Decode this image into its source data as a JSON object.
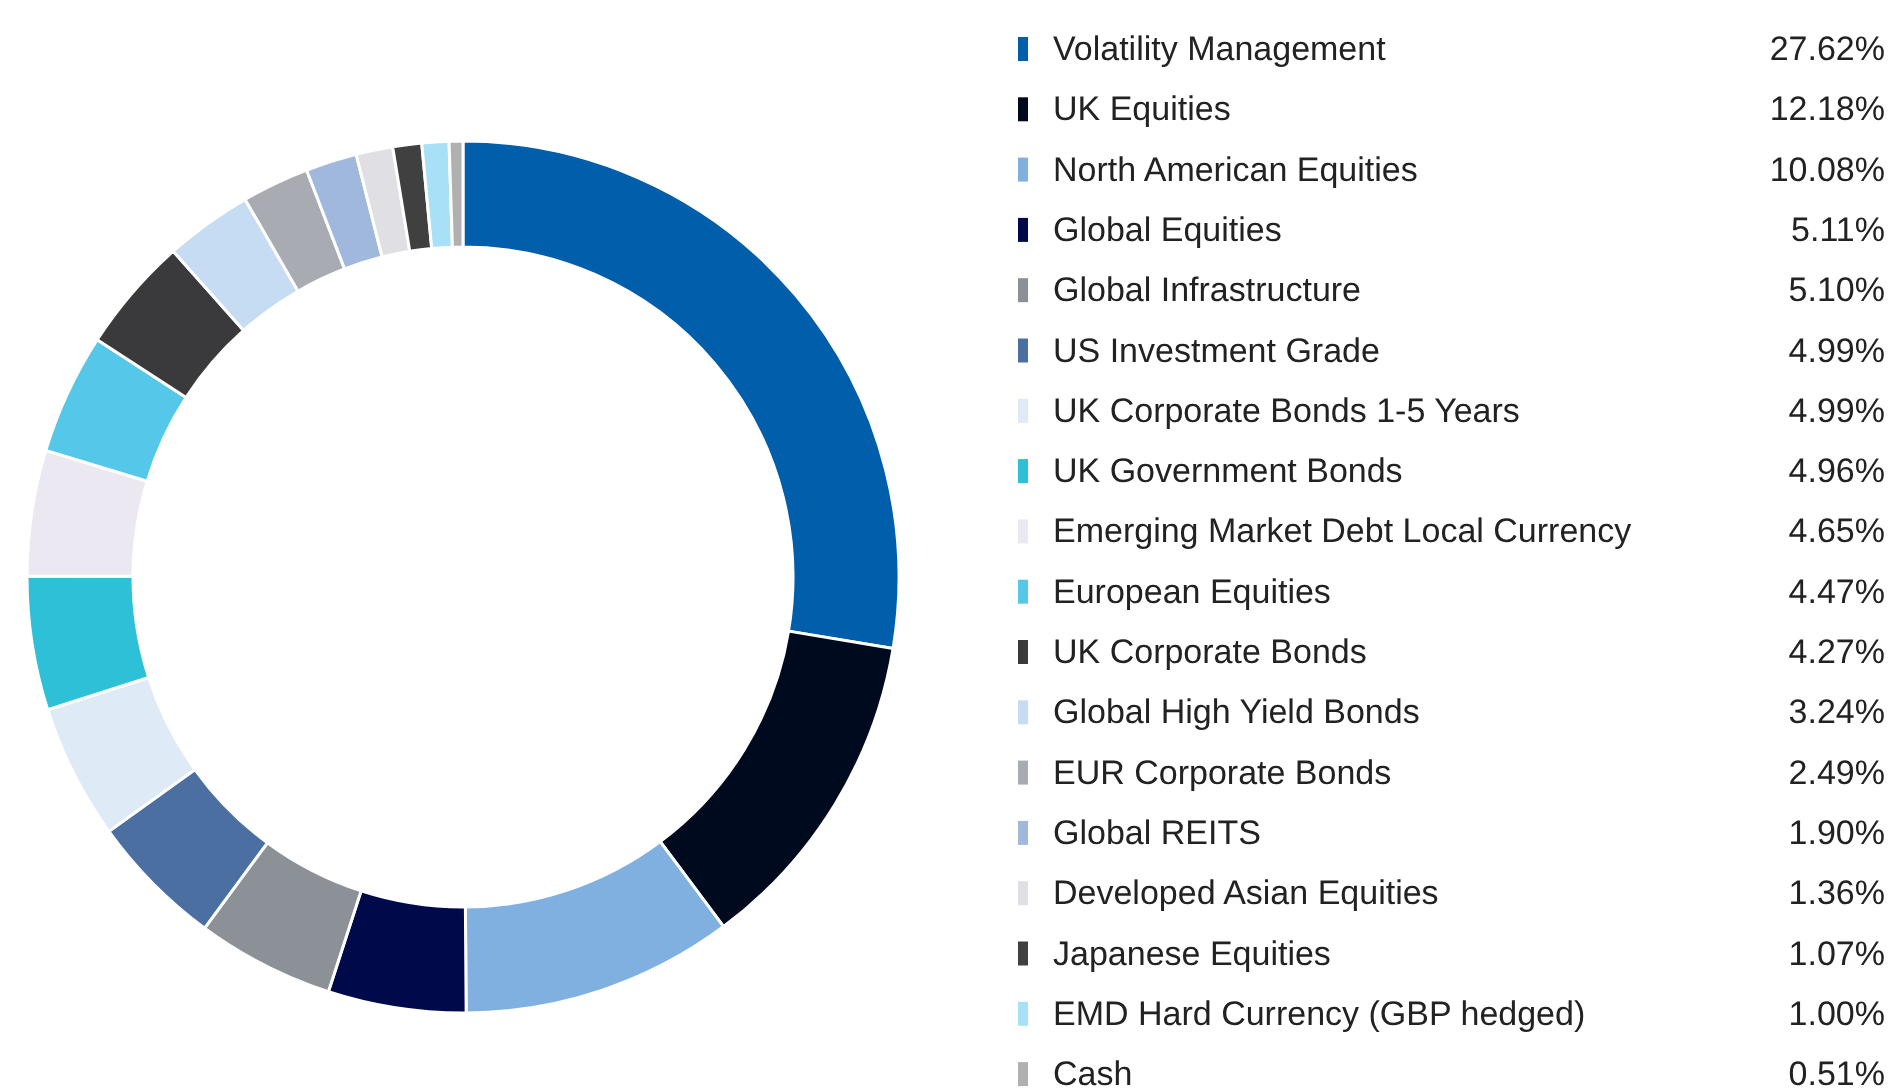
{
  "chart_data": {
    "type": "donut",
    "legend": "right",
    "categories": [
      "Volatility Management",
      "UK Equities",
      "North American Equities",
      "Global Equities",
      "Global Infrastructure",
      "US Investment Grade",
      "UK Corporate Bonds 1-5 Years",
      "UK Government Bonds",
      "Emerging Market Debt Local Currency",
      "European Equities",
      "UK Corporate Bonds",
      "Global High Yield Bonds",
      "EUR Corporate Bonds",
      "Global REITS",
      "Developed Asian Equities",
      "Japanese Equities",
      "EMD Hard Currency (GBP hedged)",
      "Cash"
    ],
    "values": [
      27.62,
      12.18,
      10.08,
      5.11,
      5.1,
      4.99,
      4.99,
      4.96,
      4.65,
      4.47,
      4.27,
      3.24,
      2.49,
      1.9,
      1.36,
      1.07,
      1.0,
      0.51
    ],
    "value_labels": [
      "27.62%",
      "12.18%",
      "10.08%",
      "5.11%",
      "5.10%",
      "4.99%",
      "4.99%",
      "4.96%",
      "4.65%",
      "4.47%",
      "4.27%",
      "3.24%",
      "2.49%",
      "1.90%",
      "1.36%",
      "1.07%",
      "1.00%",
      "0.51%"
    ],
    "colors": [
      "#005eaa",
      "#000a1e",
      "#7fb0e0",
      "#000a4a",
      "#8c9198",
      "#4a6fa0",
      "#dfeaf7",
      "#2ec0d6",
      "#ebe8f2",
      "#55c8ea",
      "#3a3a3c",
      "#c5dcf2",
      "#a8acb2",
      "#a0b8dc",
      "#e0e0e4",
      "#404040",
      "#a8e0f8",
      "#b0b0b0"
    ]
  }
}
